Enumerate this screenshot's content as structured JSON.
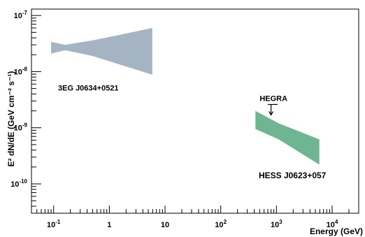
{
  "chart_data": {
    "type": "area",
    "title": "",
    "xlabel": "Energy (GeV)",
    "ylabel": "E² dN/dE (GeV cm⁻² s⁻¹)",
    "x_scale": "log",
    "y_scale": "log",
    "xlim": [
      0.04,
      30000
    ],
    "ylim": [
      3e-11,
      1.3e-07
    ],
    "grid": false,
    "x_ticks": [
      {
        "value": 0.1,
        "base": "10",
        "exp": "-1"
      },
      {
        "value": 1,
        "base": "1",
        "exp": ""
      },
      {
        "value": 10,
        "base": "10",
        "exp": ""
      },
      {
        "value": 100,
        "base": "10",
        "exp": "2"
      },
      {
        "value": 1000,
        "base": "10",
        "exp": "3"
      },
      {
        "value": 10000,
        "base": "10",
        "exp": "4"
      }
    ],
    "y_ticks": [
      {
        "value": 1e-10,
        "base": "10",
        "exp": "-10"
      },
      {
        "value": 1e-09,
        "base": "10",
        "exp": "-9"
      },
      {
        "value": 1e-08,
        "base": "10",
        "exp": "-8"
      },
      {
        "value": 1e-07,
        "base": "10",
        "exp": "-7"
      }
    ],
    "series": [
      {
        "name": "3EG J0634+0521",
        "color": "#a4b4c2",
        "upper": [
          [
            0.09,
            3.4e-08
          ],
          [
            0.16,
            3e-08
          ],
          [
            0.5,
            3.6e-08
          ],
          [
            1.5,
            4.5e-08
          ],
          [
            5.9,
            6e-08
          ]
        ],
        "lower": [
          [
            0.09,
            2.1e-08
          ],
          [
            0.16,
            2.4e-08
          ],
          [
            0.5,
            1.9e-08
          ],
          [
            1.5,
            1.35e-08
          ],
          [
            5.9,
            8.8e-09
          ]
        ]
      },
      {
        "name": "HESS J0623+057",
        "color": "#6fb592",
        "upper": [
          [
            420,
            2e-09
          ],
          [
            1100,
            1.2e-09
          ],
          [
            5900,
            6.2e-10
          ]
        ],
        "lower": [
          [
            420,
            9.5e-10
          ],
          [
            1100,
            6.2e-10
          ],
          [
            5900,
            2.2e-10
          ]
        ]
      }
    ],
    "annotations": [
      {
        "text": "3EG J0634+0521",
        "x": 0.12,
        "y": 4.6e-09
      },
      {
        "text": "HESS J0623+057",
        "x": 480,
        "y": 1.25e-10
      },
      {
        "text": "HEGRA",
        "x": 500,
        "y": 3e-09
      }
    ],
    "upper_limits": [
      {
        "label": "HEGRA",
        "x": 800,
        "x_from": 700,
        "x_to": 1050,
        "y": 2.6e-09
      }
    ]
  }
}
